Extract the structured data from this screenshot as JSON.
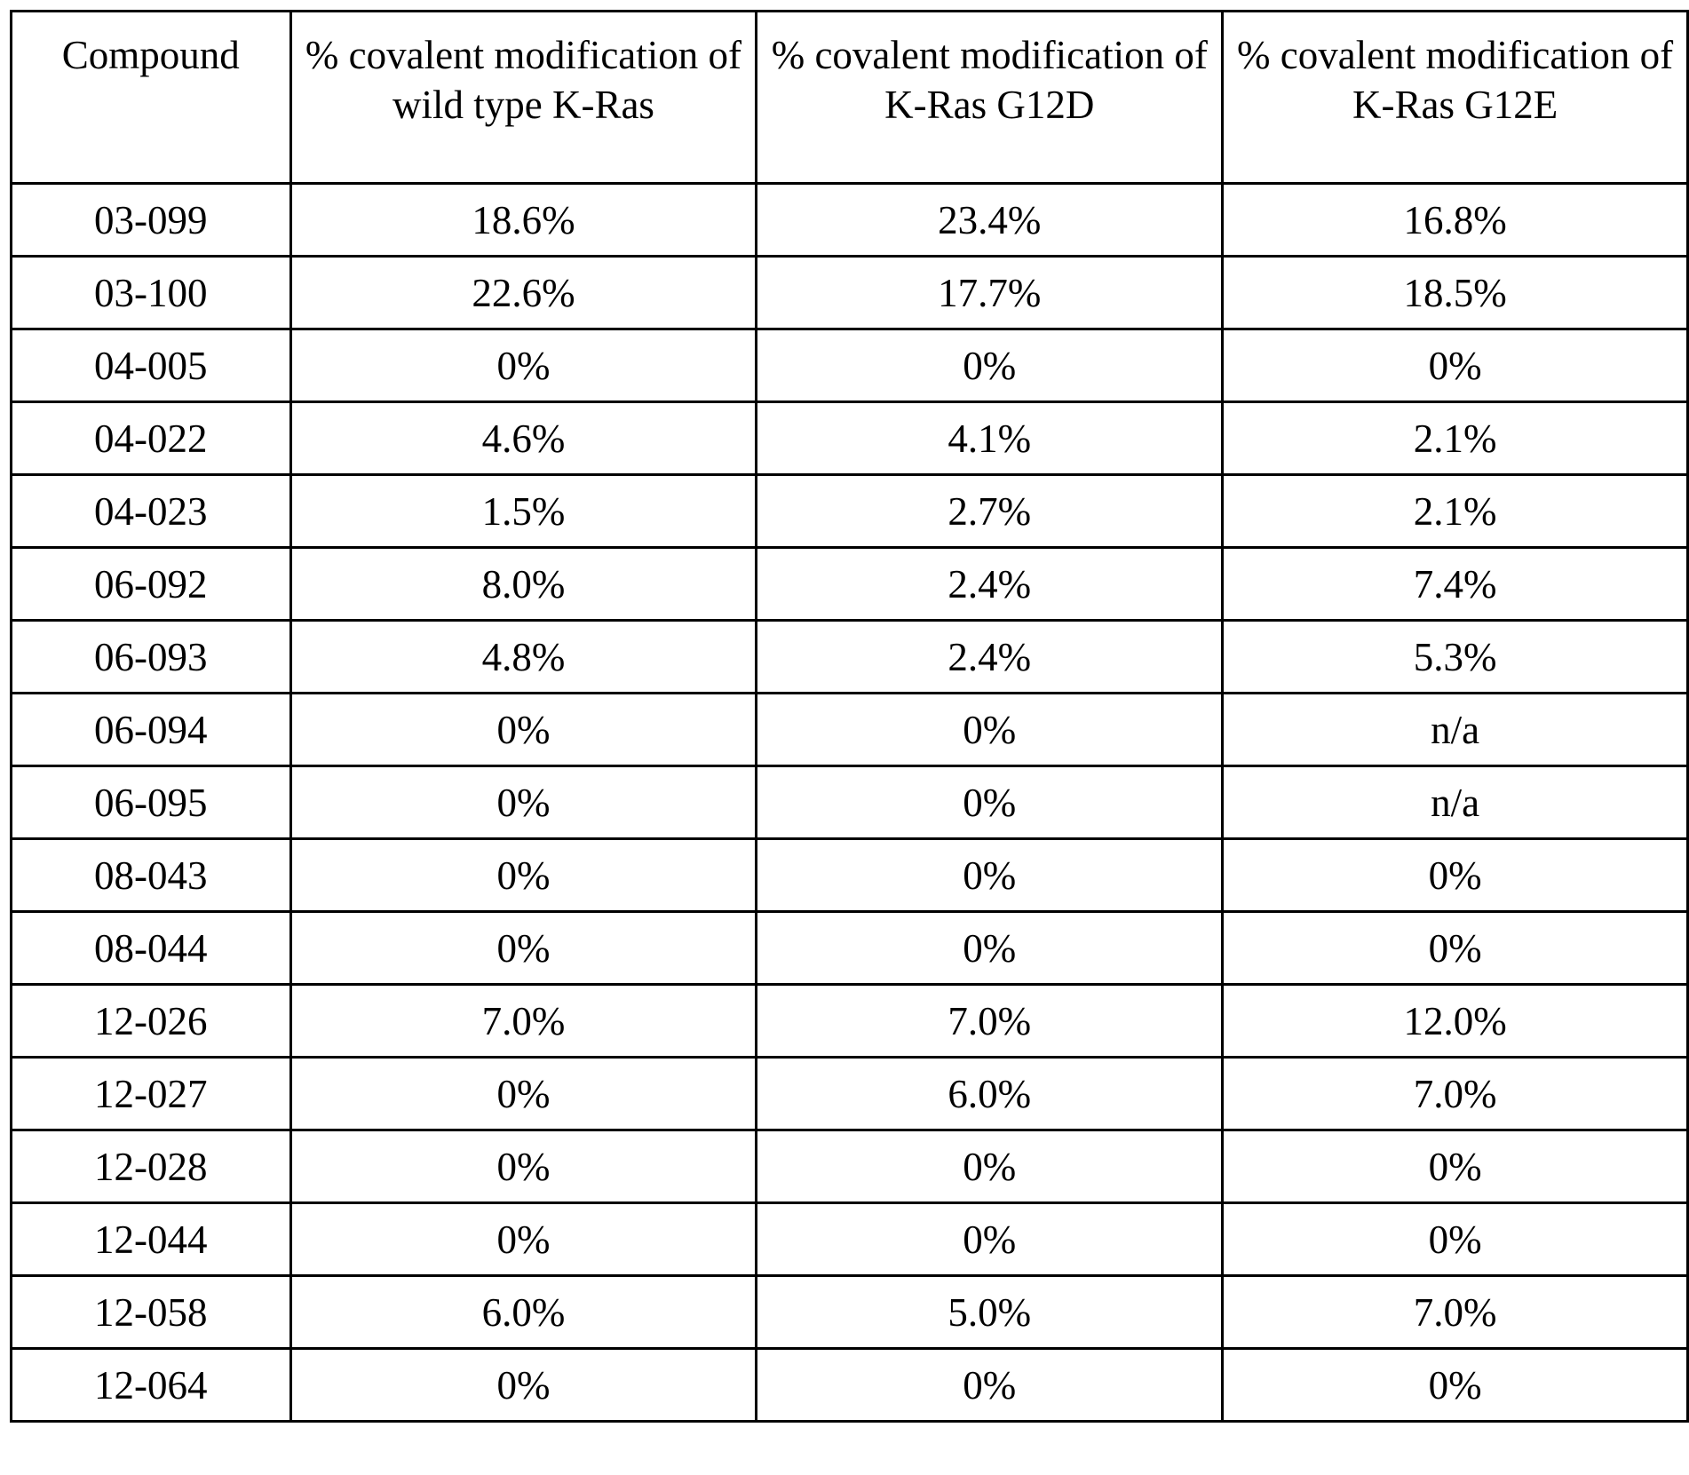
{
  "table": {
    "headers": [
      "Compound",
      "% covalent modification of wild type K-Ras",
      "% covalent modification of K-Ras G12D",
      "% covalent modification of K-Ras G12E"
    ],
    "rows": [
      [
        "03-099",
        "18.6%",
        "23.4%",
        "16.8%"
      ],
      [
        "03-100",
        "22.6%",
        "17.7%",
        "18.5%"
      ],
      [
        "04-005",
        "0%",
        "0%",
        "0%"
      ],
      [
        "04-022",
        "4.6%",
        "4.1%",
        "2.1%"
      ],
      [
        "04-023",
        "1.5%",
        "2.7%",
        "2.1%"
      ],
      [
        "06-092",
        "8.0%",
        "2.4%",
        "7.4%"
      ],
      [
        "06-093",
        "4.8%",
        "2.4%",
        "5.3%"
      ],
      [
        "06-094",
        "0%",
        "0%",
        "n/a"
      ],
      [
        "06-095",
        "0%",
        "0%",
        "n/a"
      ],
      [
        "08-043",
        "0%",
        "0%",
        "0%"
      ],
      [
        "08-044",
        "0%",
        "0%",
        "0%"
      ],
      [
        "12-026",
        "7.0%",
        "7.0%",
        "12.0%"
      ],
      [
        "12-027",
        "0%",
        "6.0%",
        "7.0%"
      ],
      [
        "12-028",
        "0%",
        "0%",
        "0%"
      ],
      [
        "12-044",
        "0%",
        "0%",
        "0%"
      ],
      [
        "12-058",
        "6.0%",
        "5.0%",
        "7.0%"
      ],
      [
        "12-064",
        "0%",
        "0%",
        "0%"
      ]
    ]
  }
}
